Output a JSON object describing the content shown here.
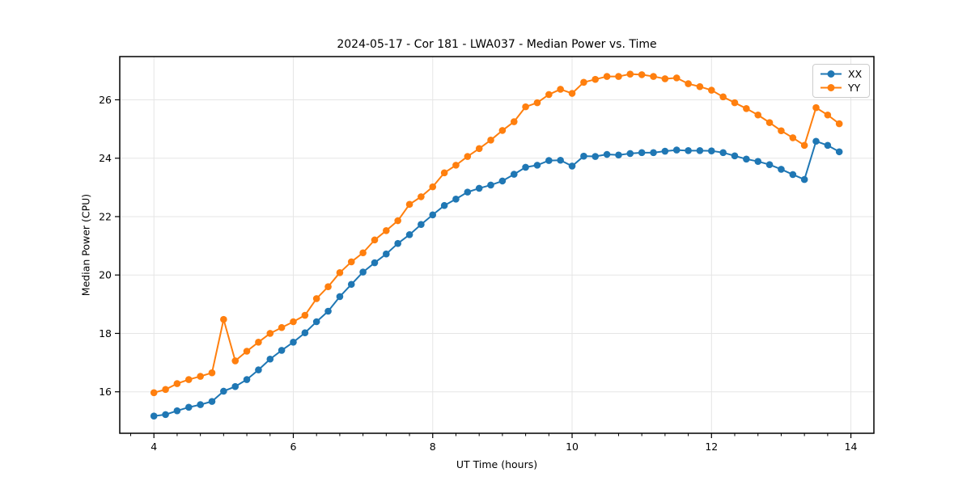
{
  "chart_data": {
    "type": "line",
    "title": "2024-05-17 - Cor 181 - LWA037 - Median Power vs. Time",
    "xlabel": "UT Time (hours)",
    "ylabel": "Median Power (CPU)",
    "xlim": [
      3.51,
      14.33
    ],
    "ylim": [
      14.58,
      27.48
    ],
    "x_ticks": [
      4,
      6,
      8,
      10,
      12,
      14
    ],
    "y_ticks": [
      16,
      18,
      20,
      22,
      24,
      26
    ],
    "x_minor_tick_step": 0.3333,
    "grid": true,
    "legend_position": "upper right",
    "x": [
      4.0,
      4.167,
      4.333,
      4.5,
      4.667,
      4.833,
      5.0,
      5.167,
      5.333,
      5.5,
      5.667,
      5.833,
      6.0,
      6.167,
      6.333,
      6.5,
      6.667,
      6.833,
      7.0,
      7.167,
      7.333,
      7.5,
      7.667,
      7.833,
      8.0,
      8.167,
      8.333,
      8.5,
      8.667,
      8.833,
      9.0,
      9.167,
      9.333,
      9.5,
      9.667,
      9.833,
      10.0,
      10.167,
      10.333,
      10.5,
      10.667,
      10.833,
      11.0,
      11.167,
      11.333,
      11.5,
      11.667,
      11.833,
      12.0,
      12.167,
      12.333,
      12.5,
      12.667,
      12.833,
      13.0,
      13.167,
      13.333,
      13.5,
      13.667,
      13.833
    ],
    "series": [
      {
        "name": "XX",
        "color": "#1f77b4",
        "values": [
          15.17,
          15.22,
          15.35,
          15.47,
          15.56,
          15.67,
          16.02,
          16.18,
          16.42,
          16.75,
          17.12,
          17.42,
          17.7,
          18.02,
          18.4,
          18.76,
          19.26,
          19.68,
          20.1,
          20.42,
          20.72,
          21.08,
          21.38,
          21.73,
          22.06,
          22.38,
          22.6,
          22.84,
          22.97,
          23.08,
          23.22,
          23.45,
          23.69,
          23.76,
          23.92,
          23.93,
          23.73,
          24.07,
          24.06,
          24.13,
          24.11,
          24.16,
          24.19,
          24.19,
          24.24,
          24.28,
          24.26,
          24.26,
          24.25,
          24.19,
          24.08,
          23.97,
          23.89,
          23.78,
          23.62,
          23.44,
          23.27,
          24.58,
          24.44,
          24.22
        ]
      },
      {
        "name": "YY",
        "color": "#ff7f0e",
        "values": [
          15.97,
          16.08,
          16.28,
          16.42,
          16.53,
          16.65,
          18.48,
          17.06,
          17.39,
          17.7,
          18.0,
          18.2,
          18.4,
          18.62,
          19.19,
          19.6,
          20.08,
          20.45,
          20.76,
          21.2,
          21.52,
          21.86,
          22.42,
          22.68,
          23.02,
          23.5,
          23.76,
          24.06,
          24.33,
          24.62,
          24.95,
          25.25,
          25.76,
          25.9,
          26.18,
          26.36,
          26.22,
          26.6,
          26.7,
          26.8,
          26.8,
          26.88,
          26.86,
          26.8,
          26.72,
          26.75,
          26.55,
          26.45,
          26.33,
          26.1,
          25.9,
          25.7,
          25.48,
          25.22,
          24.94,
          24.7,
          24.44,
          25.73,
          25.48,
          25.18
        ]
      }
    ],
    "style": {
      "grid_color": "#e5e5e5",
      "spine_color": "#000000",
      "tick_color": "#000000",
      "background": "#ffffff"
    }
  }
}
